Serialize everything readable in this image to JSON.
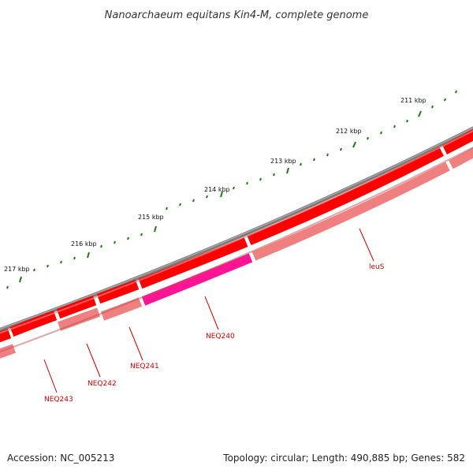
{
  "title": "Nanoarchaeum equitans Kin4-M, complete genome",
  "accession": {
    "label": "Accession:",
    "value": "NC_005213"
  },
  "topology_line": "Topology: circular; Length: 490,885 bp; Genes: 582",
  "colors": {
    "backbone": "#7a7a7a",
    "cds": "#ff0000",
    "cds_light": "#ff8080",
    "trna": "#ff1493",
    "tick": "#1a7a1a",
    "label": "#cc0000"
  },
  "chart_data": {
    "type": "map",
    "view_kbp_range": [
      210.4,
      217.9
    ],
    "tick_labels": [
      {
        "kbp": 211,
        "text": "211 kbp"
      },
      {
        "kbp": 212,
        "text": "212 kbp"
      },
      {
        "kbp": 213,
        "text": "213 kbp"
      },
      {
        "kbp": 214,
        "text": "214 kbp"
      },
      {
        "kbp": 215,
        "text": "215 kbp"
      },
      {
        "kbp": 216,
        "text": "216 kbp"
      },
      {
        "kbp": 217,
        "text": "217 kbp"
      }
    ],
    "genes": [
      {
        "name": "leuS",
        "track": "inner",
        "type": "cds"
      },
      {
        "name": "NEQ240",
        "track": "inner",
        "type": "trna"
      },
      {
        "name": "NEQ241",
        "track": "inner",
        "type": "cds"
      },
      {
        "name": "NEQ242",
        "track": "inner",
        "type": "cds"
      },
      {
        "name": "NEQ243",
        "track": "inner",
        "type": "cds"
      }
    ]
  }
}
